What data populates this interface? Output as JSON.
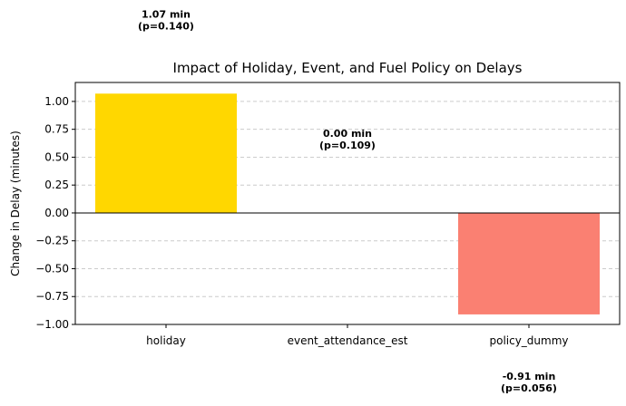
{
  "chart_data": {
    "type": "bar",
    "title": "Impact of Holiday, Event, and Fuel Policy on Delays",
    "xlabel": "",
    "ylabel": "Change in Delay (minutes)",
    "ylim": [
      -1.0,
      1.17
    ],
    "yticks": [
      -1.0,
      -0.75,
      -0.5,
      -0.25,
      0.0,
      0.25,
      0.5,
      0.75,
      1.0
    ],
    "ytick_labels": [
      "−1.00",
      "−0.75",
      "−0.50",
      "−0.25",
      "0.00",
      "0.25",
      "0.50",
      "0.75",
      "1.00"
    ],
    "grid": "y-dashed",
    "zero_line": true,
    "categories": [
      "holiday",
      "event_attendance_est",
      "policy_dummy"
    ],
    "values": [
      1.07,
      0.0,
      -0.91
    ],
    "colors": [
      "#FFD700",
      "#87CEEB",
      "#FA8072"
    ],
    "annotations": [
      {
        "line1": "1.07 min",
        "line2": "(p=0.140)"
      },
      {
        "line1": "0.00 min",
        "line2": "(p=0.109)"
      },
      {
        "line1": "-0.91 min",
        "line2": "(p=0.056)"
      }
    ]
  }
}
